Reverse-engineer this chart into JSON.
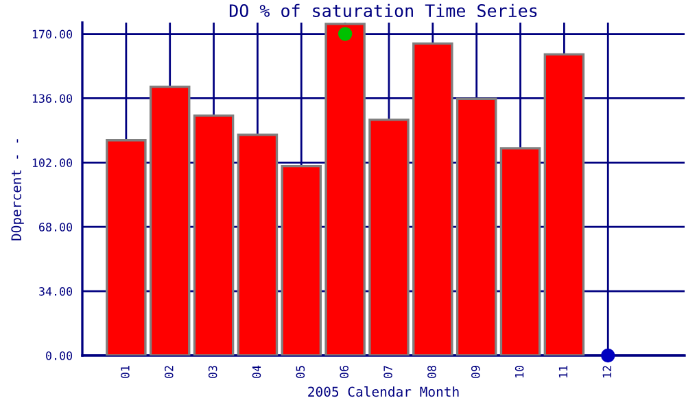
{
  "chart_data": {
    "type": "bar",
    "title": "DO % of saturation Time Series",
    "xlabel": "2005 Calendar Month",
    "ylabel": "DOpercent - -",
    "categories": [
      "01",
      "02",
      "03",
      "04",
      "05",
      "06",
      "07",
      "08",
      "09",
      "10",
      "11",
      "12"
    ],
    "series": [
      {
        "color": "#ff0000",
        "values": [
          113.8,
          142.1,
          126.8,
          116.7,
          100.1,
          175.3,
          124.6,
          164.9,
          135.7,
          109.5,
          159.2,
          null
        ]
      },
      {
        "type": "scatter",
        "color": "#00c000",
        "marker": "circle",
        "values": [
          null,
          null,
          null,
          null,
          null,
          170,
          null,
          null,
          null,
          null,
          null,
          null
        ]
      },
      {
        "type": "scatter",
        "color": "#0000c0",
        "marker": "circle",
        "values": [
          null,
          null,
          null,
          null,
          null,
          null,
          null,
          null,
          null,
          null,
          null,
          0
        ]
      }
    ],
    "ylim": [
      0,
      176
    ],
    "yticks": [
      {
        "value": 0,
        "label": "0.00"
      },
      {
        "value": 34,
        "label": "34.00"
      },
      {
        "value": 68,
        "label": "68.00"
      },
      {
        "value": 102,
        "label": "102.00"
      },
      {
        "value": 136,
        "label": "136.00"
      },
      {
        "value": 170,
        "label": "170.00"
      }
    ],
    "grid": true
  }
}
